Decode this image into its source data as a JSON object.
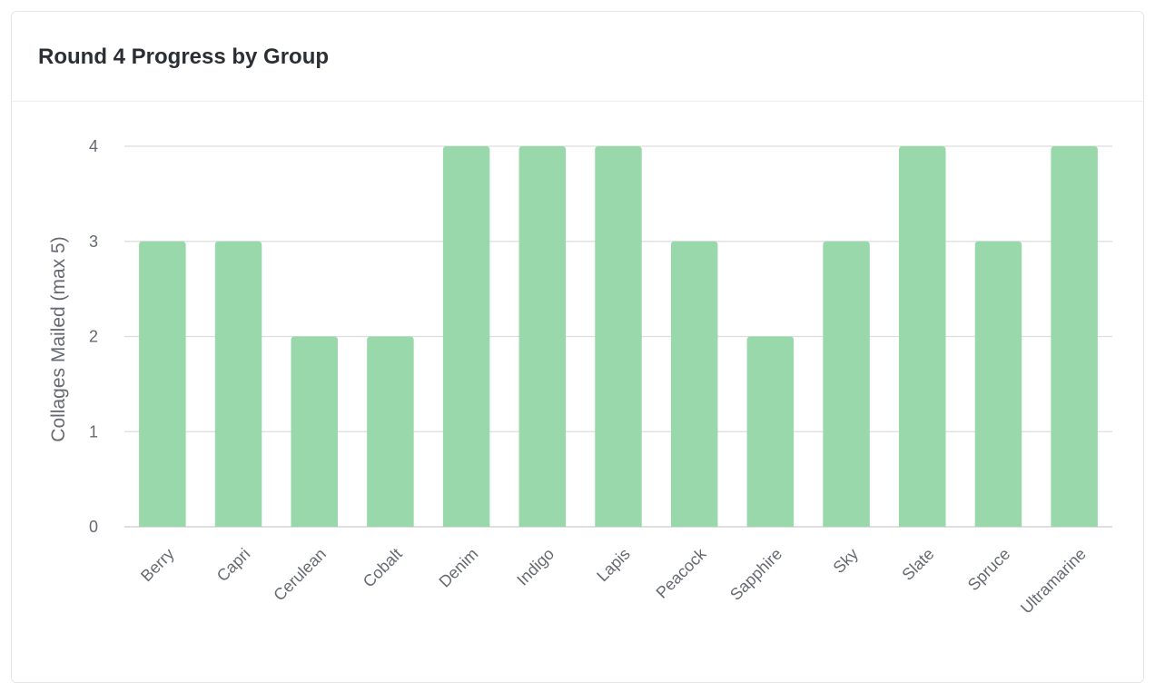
{
  "card": {
    "title": "Round 4 Progress by Group"
  },
  "chart_data": {
    "type": "bar",
    "title": "Round 4 Progress by Group",
    "xlabel": "",
    "ylabel": "Collages Mailed (max 5)",
    "categories": [
      "Berry",
      "Capri",
      "Cerulean",
      "Cobalt",
      "Denim",
      "Indigo",
      "Lapis",
      "Peacock",
      "Sapphire",
      "Sky",
      "Slate",
      "Spruce",
      "Ultramarine"
    ],
    "values": [
      3,
      3,
      2,
      2,
      4,
      4,
      4,
      3,
      2,
      3,
      4,
      3,
      4
    ],
    "ylim": [
      0,
      4
    ],
    "yticks": [
      0,
      1,
      2,
      3,
      4
    ],
    "grid": true,
    "bar_color": "#98d8aa",
    "grid_color": "#dddddd"
  }
}
